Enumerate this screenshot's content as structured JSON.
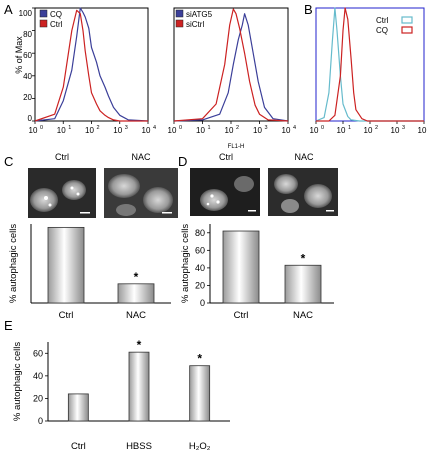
{
  "panels": {
    "A": {
      "letter": "A",
      "ylabel": "% of Max",
      "xlabel_shared": "FL1-H",
      "yticks": [
        "0",
        "20",
        "40",
        "60",
        "80",
        "100"
      ],
      "xticks": [
        "10",
        "10",
        "10",
        "10",
        "10"
      ],
      "xtick_exps": [
        "0",
        "1",
        "2",
        "3",
        "4"
      ]
    },
    "B": {
      "letter": "B"
    },
    "C": {
      "letter": "C"
    },
    "D": {
      "letter": "D"
    },
    "E": {
      "letter": "E"
    }
  },
  "micrographs": {
    "C": [
      "Ctrl",
      "NAC"
    ],
    "D": [
      "Ctrl",
      "NAC"
    ]
  },
  "chart_data": [
    {
      "id": "A-left",
      "type": "line",
      "title": "",
      "ylabel": "% of Max",
      "xlabel": "",
      "x_scale": "log",
      "xlim": [
        1,
        10000
      ],
      "ylim": [
        0,
        100
      ],
      "legend_position": "top-left",
      "legend": [
        "CQ",
        "Ctrl"
      ],
      "series": [
        {
          "name": "CQ",
          "color": "#3b3f99",
          "x": [
            1,
            5,
            10,
            20,
            30,
            40,
            50,
            60,
            80,
            100,
            150,
            200,
            300,
            400,
            600,
            1000,
            2000,
            10000
          ],
          "y": [
            0,
            2,
            18,
            45,
            75,
            100,
            96,
            92,
            82,
            65,
            52,
            40,
            30,
            22,
            12,
            5,
            1,
            0
          ]
        },
        {
          "name": "Ctrl",
          "color": "#cc2222",
          "x": [
            1,
            5,
            10,
            20,
            30,
            40,
            50,
            60,
            80,
            100,
            150,
            200,
            300,
            400,
            600,
            1000,
            10000
          ],
          "y": [
            0,
            6,
            30,
            80,
            98,
            95,
            80,
            62,
            40,
            25,
            15,
            9,
            5,
            3,
            1,
            0,
            0
          ]
        }
      ]
    },
    {
      "id": "A-right",
      "type": "line",
      "title": "",
      "xlabel": "FL1-H",
      "x_scale": "log",
      "xlim": [
        1,
        10000
      ],
      "ylim": [
        0,
        100
      ],
      "legend_position": "top-left",
      "legend": [
        "siATG5",
        "siCtrl"
      ],
      "series": [
        {
          "name": "siATG5",
          "color": "#3b3f99",
          "x": [
            1,
            10,
            40,
            80,
            120,
            180,
            250,
            300,
            400,
            600,
            900,
            1500,
            3000,
            10000
          ],
          "y": [
            0,
            1,
            6,
            25,
            50,
            72,
            85,
            95,
            85,
            60,
            35,
            12,
            2,
            0
          ]
        },
        {
          "name": "siCtrl",
          "color": "#cc2222",
          "x": [
            1,
            10,
            30,
            60,
            90,
            120,
            150,
            200,
            300,
            450,
            700,
            1000,
            2000,
            10000
          ],
          "y": [
            0,
            2,
            15,
            50,
            85,
            99,
            95,
            82,
            60,
            35,
            14,
            6,
            1,
            0
          ]
        }
      ]
    },
    {
      "id": "B",
      "type": "line",
      "title": "",
      "xlabel": "",
      "x_scale": "log",
      "xlim": [
        1,
        10000
      ],
      "ylim": [
        0,
        100
      ],
      "legend_position": "top-right",
      "legend": [
        "Ctrl",
        "CQ"
      ],
      "series": [
        {
          "name": "Ctrl",
          "color": "#66bbcc",
          "x": [
            1,
            2,
            3,
            4,
            5,
            6,
            8,
            10,
            15,
            20,
            40,
            10000
          ],
          "y": [
            0,
            3,
            25,
            70,
            100,
            80,
            40,
            15,
            4,
            1,
            0,
            0
          ]
        },
        {
          "name": "CQ",
          "color": "#cc2222",
          "x": [
            1,
            3,
            5,
            8,
            10,
            12,
            15,
            20,
            25,
            30,
            50,
            80,
            10000
          ],
          "y": [
            0,
            0,
            5,
            40,
            80,
            100,
            90,
            55,
            25,
            10,
            2,
            0,
            0
          ]
        }
      ]
    },
    {
      "id": "C",
      "type": "bar",
      "title": "",
      "ylabel": "% autophagic cells",
      "xlabel": "",
      "categories": [
        "Ctrl",
        "NAC"
      ],
      "values": [
        67,
        17
      ],
      "ylim": [
        0,
        70
      ],
      "significance": [
        "",
        "*"
      ]
    },
    {
      "id": "D",
      "type": "bar",
      "title": "",
      "ylabel": "% autophagic cells",
      "xlabel": "",
      "categories": [
        "Ctrl",
        "NAC"
      ],
      "values": [
        82,
        43
      ],
      "ylim": [
        0,
        90
      ],
      "yticks": [
        0,
        20,
        40,
        60,
        80
      ],
      "significance": [
        "",
        "*"
      ]
    },
    {
      "id": "E",
      "type": "bar",
      "title": "",
      "ylabel": "% autophagic cells",
      "xlabel": "",
      "categories": [
        "Ctrl",
        "HBSS",
        "H₂O₂"
      ],
      "values": [
        24,
        61,
        49
      ],
      "ylim": [
        0,
        70
      ],
      "yticks": [
        0,
        20,
        40,
        60
      ],
      "significance": [
        "",
        "*",
        "*"
      ]
    }
  ]
}
